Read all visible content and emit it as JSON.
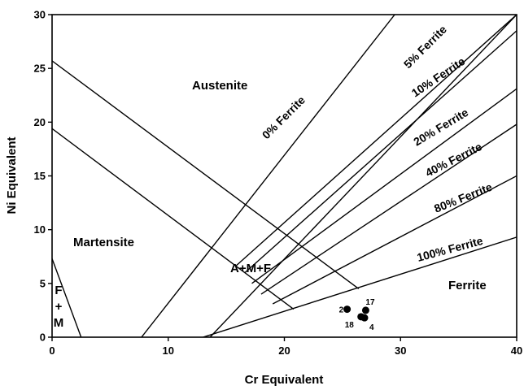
{
  "chart_data": {
    "type": "scatter",
    "title": "",
    "xlabel": "Cr Equivalent",
    "ylabel": "Ni Equivalent",
    "xlim": [
      0,
      40
    ],
    "ylim": [
      0,
      30
    ],
    "xticks": [
      0,
      10,
      20,
      30,
      40
    ],
    "yticks": [
      0,
      5,
      10,
      15,
      20,
      25,
      30
    ],
    "grid": false,
    "points": [
      {
        "label": "2",
        "x": 25.4,
        "y": 2.6
      },
      {
        "label": "17",
        "x": 27.0,
        "y": 2.5
      },
      {
        "label": "18",
        "x": 26.6,
        "y": 1.9
      },
      {
        "label": "4",
        "x": 26.9,
        "y": 1.8
      }
    ],
    "boundary_lines": [
      {
        "name": "0% Ferrite",
        "from": [
          13.6,
          0
        ],
        "to": [
          40,
          30
        ]
      },
      {
        "name": "5% Ferrite",
        "from": [
          15.8,
          6.6
        ],
        "to": [
          40,
          30
        ]
      },
      {
        "name": "10% Ferrite",
        "from": [
          16.6,
          6.0
        ],
        "to": [
          40,
          28.5
        ]
      },
      {
        "name": "20% Ferrite",
        "from": [
          17.2,
          5.0
        ],
        "to": [
          40,
          23.1
        ]
      },
      {
        "name": "40% Ferrite",
        "from": [
          18.0,
          4.0
        ],
        "to": [
          40,
          19.8
        ]
      },
      {
        "name": "80% Ferrite",
        "from": [
          19.0,
          3.1
        ],
        "to": [
          40,
          15.0
        ]
      },
      {
        "name": "100% Ferrite",
        "from": [
          13.0,
          0
        ],
        "to": [
          40,
          9.3
        ]
      },
      {
        "name": "upper martensite boundary",
        "from": [
          0,
          25.7
        ],
        "to": [
          26.4,
          4.5
        ]
      },
      {
        "name": "lower martensite boundary",
        "from": [
          0,
          19.4
        ],
        "to": [
          20.8,
          2.6
        ]
      },
      {
        "name": "diagonal",
        "from": [
          7.7,
          0
        ],
        "to": [
          29.5,
          30
        ]
      },
      {
        "name": "F+M boundary",
        "from": [
          0,
          7.3
        ],
        "to": [
          2.5,
          0
        ]
      }
    ],
    "regions": [
      {
        "label": "Austenite"
      },
      {
        "label": "Martensite"
      },
      {
        "label": "A+M+F"
      },
      {
        "label": "Ferrite"
      },
      {
        "label": "F\n+\nM"
      }
    ],
    "ferrite_labels": [
      {
        "text": "0% Ferrite"
      },
      {
        "text": "5% Ferrite"
      },
      {
        "text": "10% Ferrite"
      },
      {
        "text": "20% Ferrite"
      },
      {
        "text": "40% Ferrite"
      },
      {
        "text": "80% Ferrite"
      },
      {
        "text": "100% Ferrite"
      }
    ]
  }
}
